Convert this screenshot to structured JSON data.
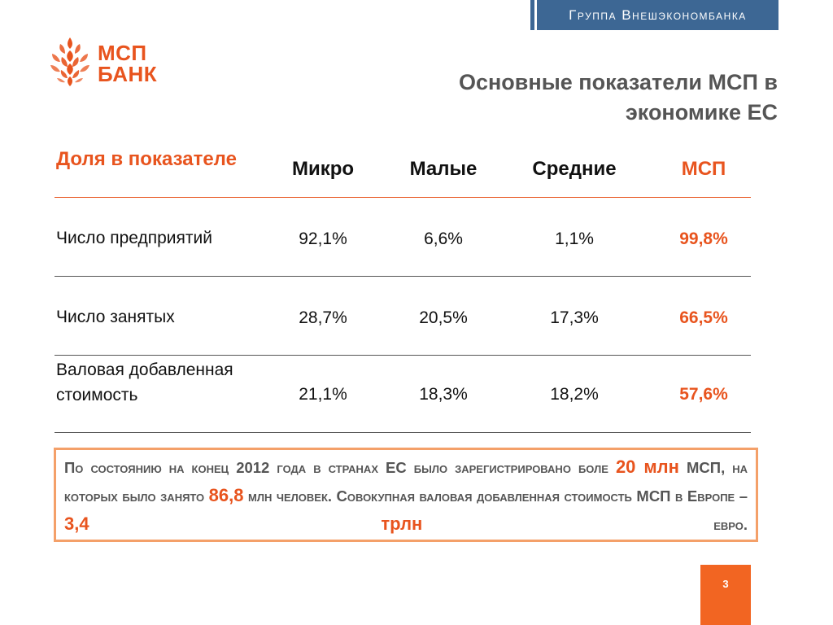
{
  "header": {
    "group_banner": "Группа Внешэкономбанка"
  },
  "logo": {
    "line1": "МСП",
    "line2": "БАНК"
  },
  "title": "Основные показатели МСП в экономике ЕС",
  "table": {
    "header_label": "Доля в показателе",
    "columns": [
      "Микро",
      "Малые",
      "Средние",
      "МСП"
    ],
    "rows": [
      {
        "label": "Число предприятий",
        "values": [
          "92,1%",
          "6,6%",
          "1,1%",
          "99,8%"
        ]
      },
      {
        "label": "Число занятых",
        "values": [
          "28,7%",
          "20,5%",
          "17,3%",
          "66,5%"
        ]
      },
      {
        "label": "Валовая добавленная стоимость",
        "values": [
          "21,1%",
          "18,3%",
          "18,2%",
          "57,6%"
        ]
      }
    ]
  },
  "summary": {
    "part1": "По состоянию на конец 2012 года в странах ЕС было зарегистрировано боле",
    "hl1": "20 млн",
    "part2": "МСП, на которых было занято",
    "hl2": "86,8",
    "part3": "млн человек. Совокупная валовая добавленная стоимость МСП в Европе –",
    "hl3": "3,4 трлн",
    "part4": "евро."
  },
  "page_number": "3",
  "colors": {
    "accent": "#e8541e",
    "banner": "#3d6794",
    "page_badge": "#f26522",
    "summary_border": "#f4a069"
  }
}
